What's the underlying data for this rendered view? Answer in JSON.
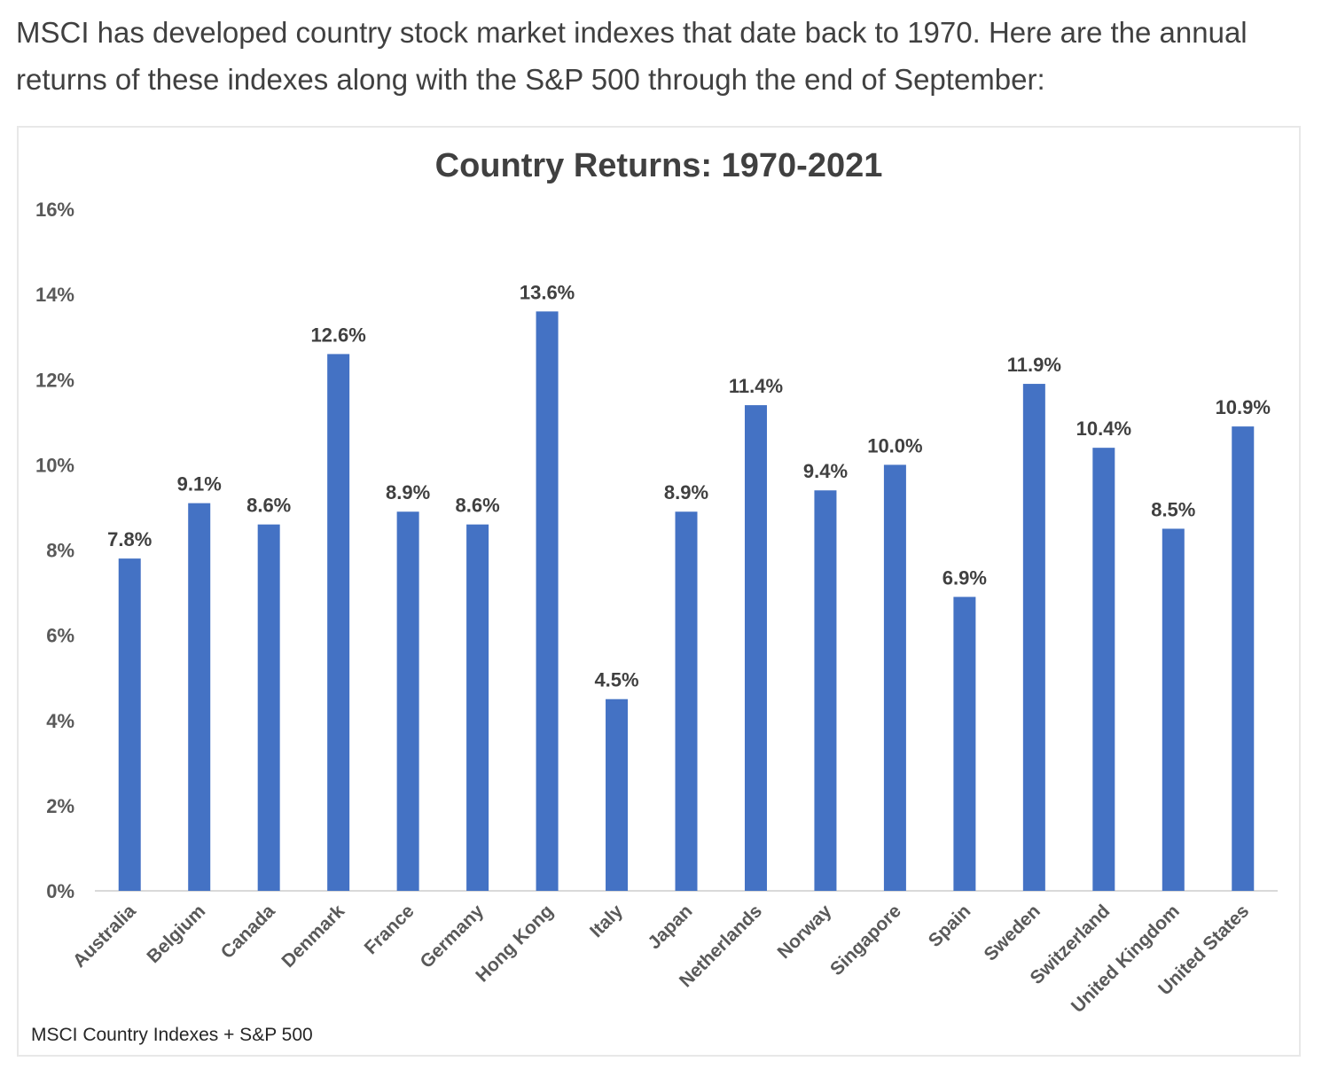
{
  "intro_text": "MSCI has developed country stock market indexes that date back to 1970. Here are the annual returns of these indexes along with the S&P 500 through the end of September:",
  "source_note": "MSCI Country Indexes + S&P 500",
  "chart_data": {
    "type": "bar",
    "title": "Country Returns: 1970-2021",
    "categories": [
      "Australia",
      "Belgium",
      "Canada",
      "Denmark",
      "France",
      "Germany",
      "Hong Kong",
      "Italy",
      "Japan",
      "Netherlands",
      "Norway",
      "Singapore",
      "Spain",
      "Sweden",
      "Switzerland",
      "United Kingdom",
      "United States"
    ],
    "values": [
      7.8,
      9.1,
      8.6,
      12.6,
      8.9,
      8.6,
      13.6,
      4.5,
      8.9,
      11.4,
      9.4,
      10.0,
      6.9,
      11.9,
      10.4,
      8.5,
      10.9
    ],
    "data_labels": [
      "7.8%",
      "9.1%",
      "8.6%",
      "12.6%",
      "8.9%",
      "8.6%",
      "13.6%",
      "4.5%",
      "8.9%",
      "11.4%",
      "9.4%",
      "10.0%",
      "6.9%",
      "11.9%",
      "10.4%",
      "8.5%",
      "10.9%"
    ],
    "yticks": [
      0,
      2,
      4,
      6,
      8,
      10,
      12,
      14,
      16
    ],
    "ytick_labels": [
      "0%",
      "2%",
      "4%",
      "6%",
      "8%",
      "10%",
      "12%",
      "14%",
      "16%"
    ],
    "ylim": [
      0,
      16
    ],
    "xlabel": "",
    "ylabel": "",
    "grid": false,
    "bar_color": "#4472c4"
  }
}
